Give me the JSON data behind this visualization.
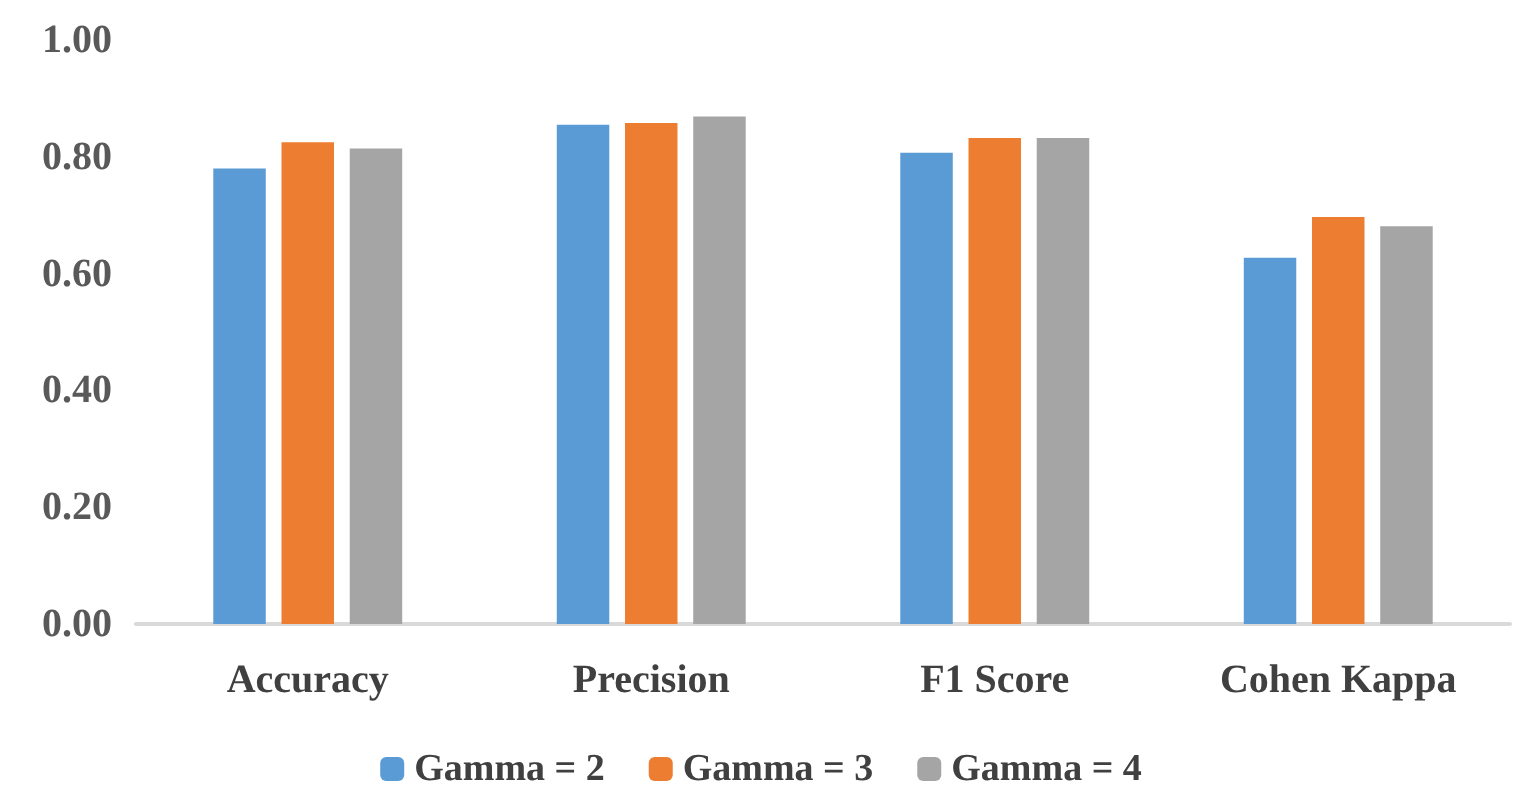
{
  "chart_data": {
    "type": "bar",
    "categories": [
      "Accuracy",
      "Precision",
      "F1 Score",
      "Cohen Kappa"
    ],
    "series": [
      {
        "name": "Gamma = 2",
        "color": "#5b9bd5",
        "values": [
          0.78,
          0.855,
          0.807,
          0.627
        ]
      },
      {
        "name": "Gamma = 3",
        "color": "#ed7d31",
        "values": [
          0.825,
          0.858,
          0.832,
          0.697
        ]
      },
      {
        "name": "Gamma = 4",
        "color": "#a5a5a5",
        "values": [
          0.814,
          0.869,
          0.832,
          0.681
        ]
      }
    ],
    "ylim": [
      0,
      1
    ],
    "yticks": [
      {
        "value": 0,
        "label": "0.00"
      },
      {
        "value": 0.2,
        "label": "0.20"
      },
      {
        "value": 0.4,
        "label": "0.40"
      },
      {
        "value": 0.6,
        "label": "0.60"
      },
      {
        "value": 0.8,
        "label": "0.80"
      },
      {
        "value": 1,
        "label": "1.00"
      }
    ],
    "grid": false,
    "legend": "bottom"
  }
}
